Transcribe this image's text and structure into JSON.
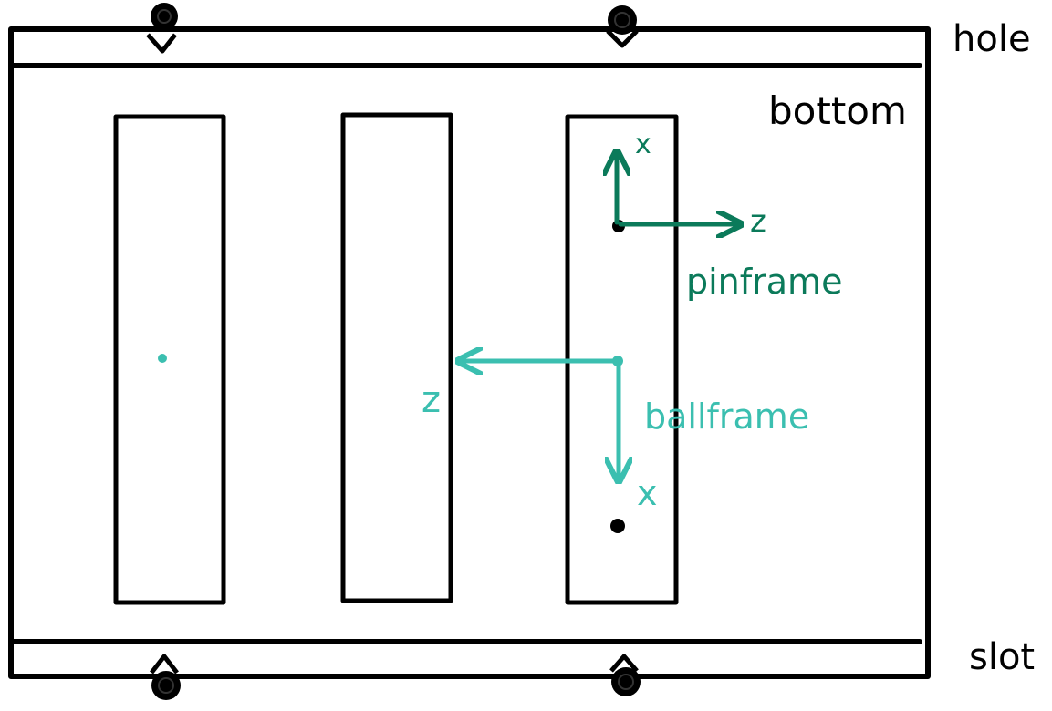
{
  "labels": {
    "hole": "hole",
    "bottom": "bottom",
    "slot": "slot",
    "pinframe": "pinframe",
    "ballframe": "ballframe"
  },
  "pinframe_axes": {
    "x_label": "x",
    "z_label": "z"
  },
  "ballframe_axes": {
    "x_label": "x",
    "z_label": "z"
  },
  "colors": {
    "ink": "#000000",
    "pinframe": "#0b7a5a",
    "ballframe": "#3bbfb0",
    "background": "#ffffff"
  }
}
